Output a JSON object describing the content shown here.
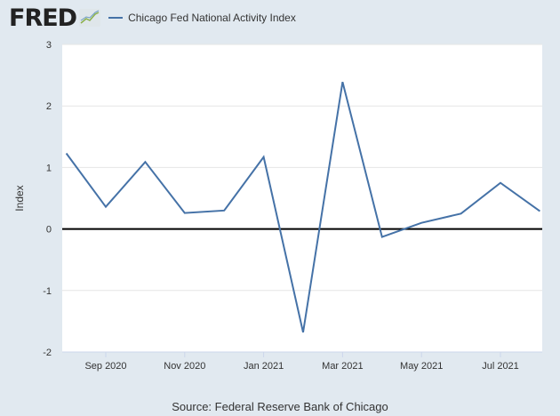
{
  "header": {
    "logo": "FRED",
    "legend_label": "Chicago Fed National Activity Index"
  },
  "source": "Source: Federal Reserve Bank of Chicago",
  "chart_data": {
    "type": "line",
    "title": "Chicago Fed National Activity Index",
    "xlabel": "",
    "ylabel": "Index",
    "ylim": [
      -2,
      3
    ],
    "yticks": [
      3,
      2,
      1,
      0,
      -1,
      -2
    ],
    "xticks": [
      {
        "label": "Sep 2020",
        "month": 1
      },
      {
        "label": "Nov 2020",
        "month": 3
      },
      {
        "label": "Jan 2021",
        "month": 5
      },
      {
        "label": "Mar 2021",
        "month": 7
      },
      {
        "label": "May 2021",
        "month": 9
      },
      {
        "label": "Jul 2021",
        "month": 11
      }
    ],
    "x": [
      "2020-08",
      "2020-09",
      "2020-10",
      "2020-11",
      "2020-12",
      "2021-01",
      "2021-02",
      "2021-03",
      "2021-04",
      "2021-05",
      "2021-06",
      "2021-07",
      "2021-08"
    ],
    "series": [
      {
        "name": "Chicago Fed National Activity Index",
        "color": "#4572a7",
        "values": [
          1.23,
          0.36,
          1.09,
          0.26,
          0.3,
          1.17,
          -1.68,
          2.39,
          -0.13,
          0.1,
          0.25,
          0.75,
          0.29
        ]
      }
    ],
    "grid": true
  }
}
